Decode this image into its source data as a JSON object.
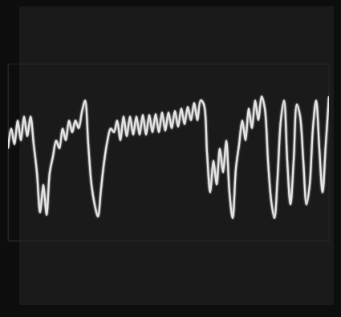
{
  "chart_data": {
    "type": "line",
    "x": [
      0,
      4,
      8,
      12,
      16,
      20,
      24,
      28,
      32,
      36,
      40,
      44,
      48,
      52,
      56,
      60,
      64,
      68,
      72,
      76,
      80,
      84,
      88,
      92,
      96,
      100,
      104,
      108,
      112,
      116,
      120,
      124,
      128,
      132,
      136,
      140,
      144,
      148,
      152,
      156,
      160,
      164,
      168,
      172,
      176,
      180,
      184,
      188,
      192,
      196,
      200,
      204,
      208,
      212,
      216,
      220,
      224,
      228,
      232,
      236,
      240,
      244,
      248,
      252,
      256,
      260,
      264,
      268,
      272,
      276,
      280,
      284,
      288,
      292,
      296,
      300,
      304,
      308,
      312,
      316,
      320,
      324,
      328,
      332,
      336,
      340,
      344,
      348,
      352,
      356,
      360,
      364,
      368,
      372,
      376,
      380,
      384,
      388,
      392,
      396,
      400
    ],
    "series": [
      {
        "color": "#e6e6e6",
        "values": [
          115,
          140,
          120,
          150,
          125,
          155,
          130,
          155,
          120,
          85,
          35,
          70,
          32,
          85,
          105,
          125,
          115,
          140,
          125,
          150,
          135,
          150,
          140,
          160,
          175,
          120,
          70,
          45,
          30,
          65,
          100,
          125,
          140,
          135,
          150,
          125,
          155,
          130,
          155,
          132,
          155,
          132,
          157,
          132,
          157,
          135,
          158,
          135,
          160,
          137,
          160,
          140,
          162,
          142,
          165,
          145,
          167,
          150,
          172,
          150,
          175,
          170,
          110,
          60,
          100,
          70,
          115,
          85,
          125,
          60,
          28,
          90,
          120,
          150,
          125,
          165,
          140,
          175,
          150,
          180,
          165,
          100,
          50,
          28,
          80,
          150,
          175,
          100,
          45,
          100,
          170,
          155,
          100,
          45,
          70,
          140,
          175,
          115,
          60,
          120,
          180
        ]
      }
    ],
    "xlim": [
      0,
      400
    ],
    "ylim": [
      0,
      220
    ],
    "tick_labels": false
  }
}
